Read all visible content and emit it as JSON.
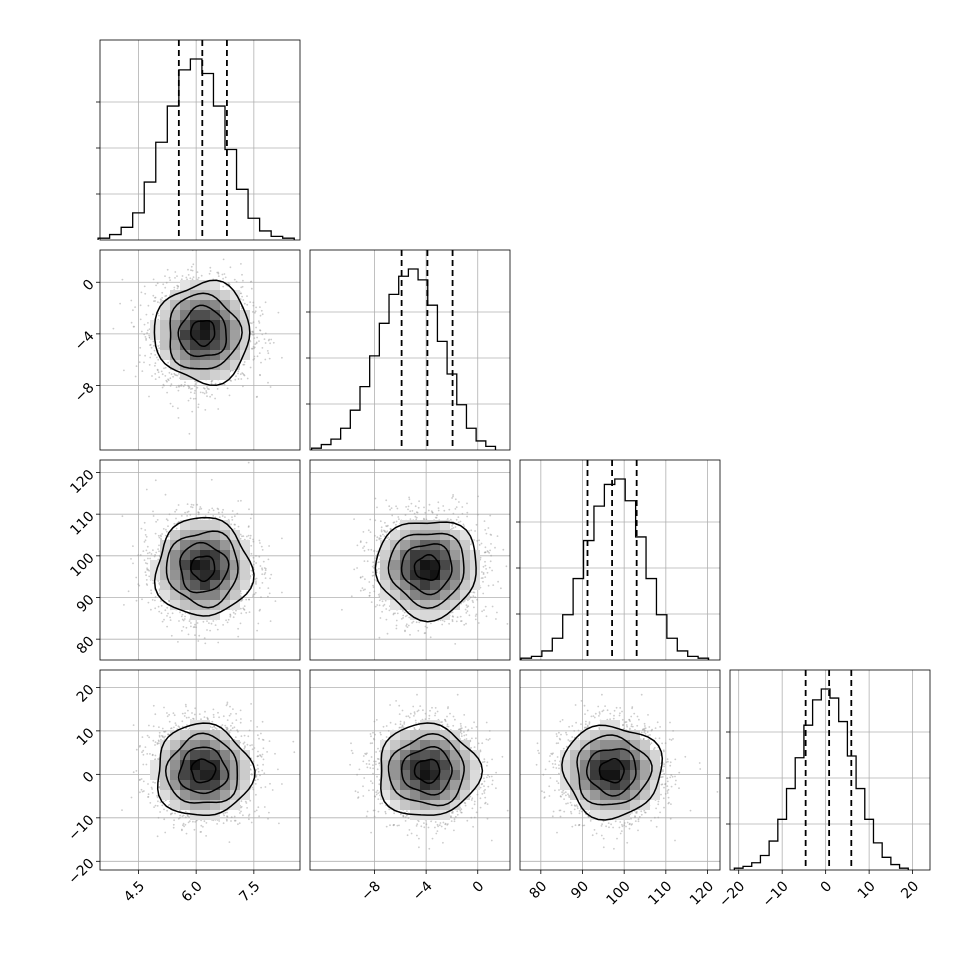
{
  "chart_data": {
    "type": "corner",
    "grid": true,
    "parameters": [
      {
        "range": [
          3.5,
          8.7
        ],
        "ticks": [
          4.5,
          6.0,
          7.5
        ],
        "tick_labels": [
          "4.5",
          "6.0",
          "7.5"
        ],
        "quantiles": [
          5.55,
          6.16,
          6.8
        ],
        "hist_bins": [
          3.6,
          3.9,
          4.2,
          4.5,
          4.8,
          5.1,
          5.4,
          5.7,
          6.0,
          6.3,
          6.6,
          6.9,
          7.2,
          7.5,
          7.8,
          8.1,
          8.4
        ],
        "hist_counts": [
          0.01,
          0.03,
          0.07,
          0.15,
          0.32,
          0.54,
          0.74,
          0.94,
          1.0,
          0.92,
          0.74,
          0.5,
          0.28,
          0.12,
          0.05,
          0.02,
          0.01
        ]
      },
      {
        "range": [
          -13.0,
          2.5
        ],
        "ticks": [
          -8,
          -4,
          0
        ],
        "tick_labels": [
          "−8",
          "−4",
          "0"
        ],
        "quantiles": [
          -5.9,
          -3.9,
          -1.95
        ],
        "hist_bins": [
          -12.5,
          -11.75,
          -11.0,
          -10.25,
          -9.5,
          -8.75,
          -8.0,
          -7.25,
          -6.5,
          -5.75,
          -5.0,
          -4.25,
          -3.5,
          -2.75,
          -2.0,
          -1.25,
          -0.5,
          0.25,
          1.0
        ],
        "hist_counts": [
          0.01,
          0.03,
          0.06,
          0.12,
          0.22,
          0.35,
          0.52,
          0.7,
          0.86,
          0.96,
          1.0,
          0.94,
          0.8,
          0.6,
          0.42,
          0.25,
          0.12,
          0.05,
          0.02
        ]
      },
      {
        "range": [
          75,
          123
        ],
        "ticks": [
          80,
          90,
          100,
          110,
          120
        ],
        "tick_labels": [
          "80",
          "90",
          "100",
          "110",
          "120"
        ],
        "quantiles": [
          91.2,
          97.1,
          103.0
        ],
        "hist_bins": [
          76.5,
          79.0,
          81.5,
          84.0,
          86.5,
          89.0,
          91.5,
          94.0,
          96.5,
          99.0,
          101.5,
          104.0,
          106.5,
          109.0,
          111.5,
          114.0,
          116.5,
          119.0
        ],
        "hist_counts": [
          0.01,
          0.02,
          0.05,
          0.12,
          0.25,
          0.45,
          0.66,
          0.85,
          0.97,
          1.0,
          0.88,
          0.68,
          0.45,
          0.25,
          0.12,
          0.05,
          0.02,
          0.01
        ]
      },
      {
        "range": [
          -22,
          24
        ],
        "ticks": [
          -20,
          -10,
          0,
          10,
          20
        ],
        "tick_labels": [
          "−20",
          "−10",
          "0",
          "10",
          "20"
        ],
        "quantiles": [
          -4.6,
          0.8,
          5.9
        ],
        "hist_bins": [
          -20.0,
          -18.0,
          -16.0,
          -14.0,
          -12.0,
          -10.0,
          -8.0,
          -6.0,
          -4.0,
          -2.0,
          0.0,
          2.0,
          4.0,
          6.0,
          8.0,
          10.0,
          12.0,
          14.0,
          16.0,
          18.0
        ],
        "hist_counts": [
          0.01,
          0.02,
          0.04,
          0.08,
          0.16,
          0.28,
          0.45,
          0.62,
          0.8,
          0.94,
          1.0,
          0.95,
          0.82,
          0.63,
          0.45,
          0.28,
          0.15,
          0.07,
          0.03,
          0.01
        ]
      }
    ],
    "pair_stats": [
      {
        "row": 1,
        "col": 0,
        "mx": 6.18,
        "sx": 0.62,
        "my": -3.9,
        "sy": 1.95
      },
      {
        "row": 2,
        "col": 0,
        "mx": 6.18,
        "sx": 0.62,
        "my": 97.1,
        "sy": 5.9
      },
      {
        "row": 2,
        "col": 1,
        "mx": -3.9,
        "sx": 1.95,
        "my": 97.1,
        "sy": 5.9
      },
      {
        "row": 3,
        "col": 0,
        "mx": 6.18,
        "sx": 0.62,
        "my": 0.8,
        "sy": 5.3
      },
      {
        "row": 3,
        "col": 1,
        "mx": -3.9,
        "sx": 1.95,
        "my": 0.8,
        "sy": 5.3
      },
      {
        "row": 3,
        "col": 2,
        "mx": 97.1,
        "sx": 5.9,
        "my": 0.8,
        "sy": 5.3
      }
    ],
    "contour_levels_sigma": [
      0.5,
      1.0,
      1.5,
      2.0
    ]
  }
}
